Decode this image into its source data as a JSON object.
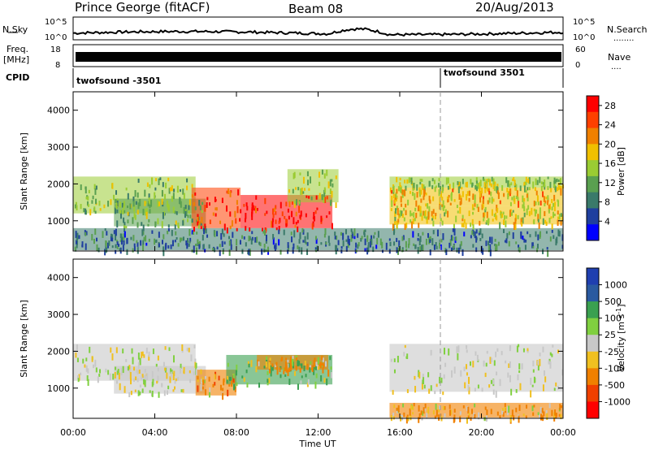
{
  "header": {
    "title": "Prince George (fitACF)",
    "beam": "Beam 08",
    "date": "20/Aug/2013"
  },
  "noise_panel": {
    "left_label": "N.Sky",
    "left_ticks": [
      "10^5",
      "10^0"
    ],
    "right_label": "N.Search",
    "right_ticks": [
      "10^5",
      "10^0"
    ],
    "right_dots": "........"
  },
  "freq_panel": {
    "label_line1": "Freq.",
    "label_line2": "[MHz]",
    "left_ticks": [
      "18",
      "8"
    ],
    "right_label": "Nave",
    "right_ticks": [
      "60",
      "0"
    ],
    "right_dots": "...."
  },
  "cpid_panel": {
    "label": "CPID",
    "segments": [
      "twofsound -3501",
      "twofsound 3501"
    ]
  },
  "colors": {
    "sky_noise": "#000000",
    "power": [
      "#0000ff",
      "#1f3f9f",
      "#3a7a6a",
      "#5aa050",
      "#9acc33",
      "#f0c000",
      "#f08000",
      "#ff4000",
      "#ff0000"
    ],
    "velocity": [
      "#ff0000",
      "#f04000",
      "#f08000",
      "#f0c020",
      "#c8c8c8",
      "#80d040",
      "#3aa050",
      "#2a5aa0",
      "#1f3fb0"
    ]
  },
  "chart_data": [
    {
      "type": "heatmap",
      "name": "power",
      "ylabel": "Slant Range [km]",
      "y_ticks": [
        "1000",
        "2000",
        "3000",
        "4000"
      ],
      "ylim": [
        180,
        4500
      ],
      "xlim": [
        0,
        24
      ],
      "colorbar_label": "Power [dB]",
      "colorbar_ticks": [
        "4",
        "8",
        "12",
        "16",
        "20",
        "24",
        "28"
      ],
      "colorbar_range": [
        0,
        30
      ],
      "bands": [
        {
          "t_start": 0.0,
          "t_end": 6.0,
          "range_low": 1200,
          "range_high": 2200,
          "power": 14
        },
        {
          "t_start": 2.0,
          "t_end": 6.5,
          "range_low": 850,
          "range_high": 1600,
          "power": 12
        },
        {
          "t_start": 5.8,
          "t_end": 8.2,
          "range_low": 800,
          "range_high": 1900,
          "power": 26
        },
        {
          "t_start": 8.2,
          "t_end": 12.7,
          "range_low": 800,
          "range_high": 1700,
          "power": 27
        },
        {
          "t_start": 10.5,
          "t_end": 13.0,
          "range_low": 1500,
          "range_high": 2400,
          "power": 15
        },
        {
          "t_start": 15.5,
          "t_end": 24.0,
          "range_low": 1900,
          "range_high": 2200,
          "power": 15
        },
        {
          "t_start": 15.5,
          "t_end": 24.0,
          "range_low": 1400,
          "range_high": 1900,
          "power": 19
        },
        {
          "t_start": 15.5,
          "t_end": 24.0,
          "range_low": 900,
          "range_high": 1400,
          "power": 17
        },
        {
          "t_start": 0.0,
          "t_end": 24.0,
          "range_low": 200,
          "range_high": 800,
          "power": 8
        }
      ]
    },
    {
      "type": "heatmap",
      "name": "velocity",
      "ylabel": "Slant Range [km]",
      "y_ticks": [
        "1000",
        "2000",
        "3000",
        "4000"
      ],
      "ylim": [
        180,
        4500
      ],
      "xlabel": "Time UT",
      "x_ticks": [
        "00:00",
        "04:00",
        "08:00",
        "12:00",
        "16:00",
        "20:00",
        "00:00"
      ],
      "xlim": [
        0,
        24
      ],
      "colorbar_label": "Velocity [m s^-1]",
      "colorbar_ticks": [
        "1000",
        "500",
        "100",
        "25",
        "-25",
        "-100",
        "-500",
        "-1000"
      ],
      "bands": [
        {
          "t_start": 0.0,
          "t_end": 6.0,
          "range_low": 1200,
          "range_high": 2200,
          "velocity": 0
        },
        {
          "t_start": 2.0,
          "t_end": 6.5,
          "range_low": 850,
          "range_high": 1600,
          "velocity": 0
        },
        {
          "t_start": 6.0,
          "t_end": 8.0,
          "range_low": 800,
          "range_high": 1500,
          "velocity": -250
        },
        {
          "t_start": 7.5,
          "t_end": 12.7,
          "range_low": 1100,
          "range_high": 1900,
          "velocity": 150
        },
        {
          "t_start": 9.0,
          "t_end": 12.5,
          "range_low": 1500,
          "range_high": 1900,
          "velocity": -200
        },
        {
          "t_start": 15.5,
          "t_end": 24.0,
          "range_low": 900,
          "range_high": 2200,
          "velocity": 0
        },
        {
          "t_start": 15.5,
          "t_end": 24.0,
          "range_low": 200,
          "range_high": 600,
          "velocity": -120
        }
      ]
    }
  ]
}
